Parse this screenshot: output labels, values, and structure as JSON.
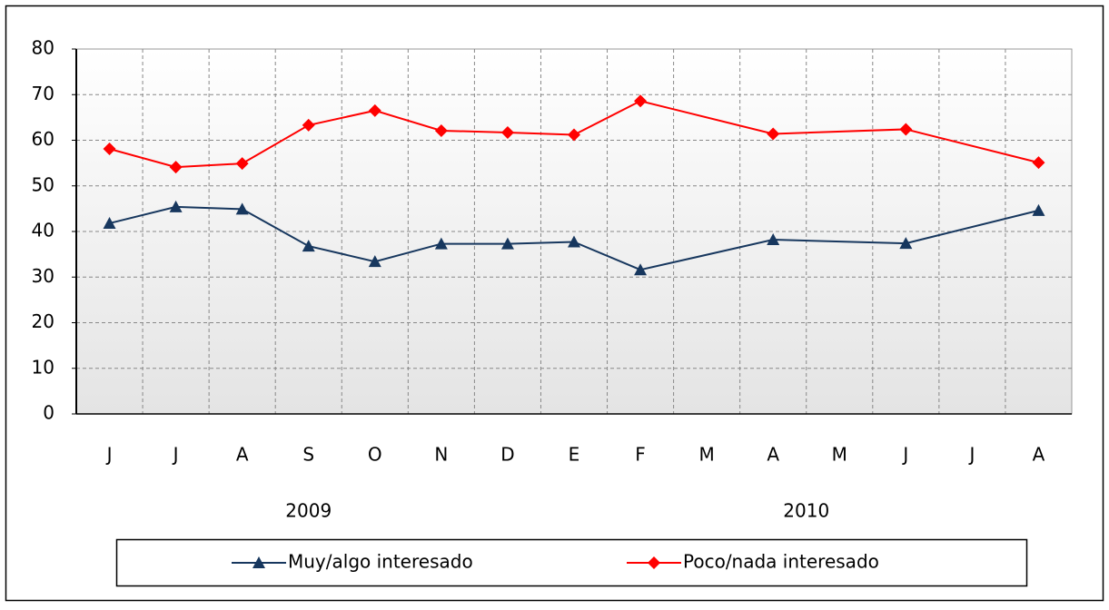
{
  "chart_data": {
    "type": "line",
    "categories": [
      "J",
      "J",
      "A",
      "S",
      "O",
      "N",
      "D",
      "E",
      "F",
      "M",
      "A",
      "M",
      "J",
      "J",
      "A"
    ],
    "year_labels": [
      "2009",
      "2010"
    ],
    "series": [
      {
        "name": "Muy/algo interesado",
        "color": "#17375e",
        "marker": "triangle",
        "values": [
          41.8,
          45.4,
          44.9,
          36.8,
          33.4,
          37.3,
          37.3,
          37.7,
          31.6,
          null,
          38.2,
          null,
          37.4,
          null,
          44.6
        ]
      },
      {
        "name": "Poco/nada interesado",
        "color": "#ff0000",
        "marker": "diamond",
        "values": [
          58.1,
          54.1,
          54.9,
          63.3,
          66.5,
          62.1,
          61.7,
          61.2,
          68.6,
          null,
          61.4,
          null,
          62.4,
          null,
          55.1
        ]
      }
    ],
    "span_gaps": true,
    "ylim": [
      0,
      80
    ],
    "yticks": [
      0,
      10,
      20,
      30,
      40,
      50,
      60,
      70,
      80
    ],
    "grid": true
  }
}
